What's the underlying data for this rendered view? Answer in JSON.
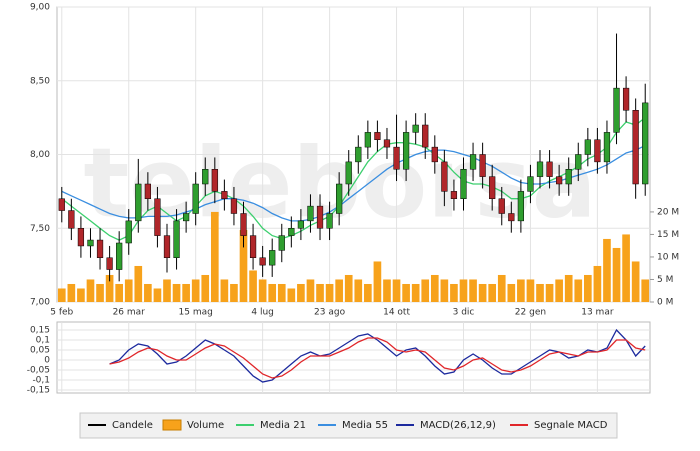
{
  "watermark": "teleborsa",
  "chart_data": [
    {
      "type": "candlestick",
      "categories": [
        "5 feb",
        null,
        null,
        null,
        null,
        null,
        null,
        "26 mar",
        null,
        null,
        null,
        null,
        null,
        null,
        "15 mag",
        null,
        null,
        null,
        null,
        null,
        null,
        "4 lug",
        null,
        null,
        null,
        null,
        null,
        null,
        "23 ago",
        null,
        null,
        null,
        null,
        null,
        null,
        "14 ott",
        null,
        null,
        null,
        null,
        null,
        null,
        "3 dic",
        null,
        null,
        null,
        null,
        null,
        null,
        "22 gen",
        null,
        null,
        null,
        null,
        null,
        null,
        "13 mar",
        null,
        null,
        null,
        null,
        null
      ],
      "ylim": [
        7,
        9
      ],
      "yticks": [
        {
          "value": 7,
          "label": "7,00"
        },
        {
          "value": 7.5,
          "label": "7,50"
        },
        {
          "value": 8,
          "label": "8,00"
        },
        {
          "value": 8.5,
          "label": "8,50"
        },
        {
          "value": 9,
          "label": "9,00"
        }
      ],
      "y2lim": [
        0,
        65.5
      ],
      "y2ticks": [
        {
          "value": 0,
          "label": "0 M"
        },
        {
          "value": 5,
          "label": "5 M"
        },
        {
          "value": 10,
          "label": "10 M"
        },
        {
          "value": 15,
          "label": "15 M"
        },
        {
          "value": 20,
          "label": "20 M"
        }
      ],
      "grid": true,
      "series": [
        {
          "name": "Candele",
          "type": "candlestick",
          "color": "#000000",
          "up_color": "#2f9e2f",
          "down_color": "#b0262a",
          "open": [
            7.7,
            7.62,
            7.5,
            7.38,
            7.42,
            7.3,
            7.22,
            7.4,
            7.55,
            7.8,
            7.7,
            7.45,
            7.3,
            7.55,
            7.6,
            7.8,
            7.9,
            7.75,
            7.7,
            7.6,
            7.45,
            7.3,
            7.25,
            7.35,
            7.45,
            7.5,
            7.55,
            7.65,
            7.5,
            7.6,
            7.8,
            7.95,
            8.05,
            8.15,
            8.1,
            8.05,
            7.9,
            8.15,
            8.2,
            8.05,
            7.95,
            7.75,
            7.7,
            7.9,
            8.0,
            7.85,
            7.7,
            7.6,
            7.55,
            7.75,
            7.85,
            7.95,
            7.85,
            7.8,
            7.9,
            8.0,
            8.1,
            7.95,
            8.15,
            8.45,
            8.3,
            7.8
          ],
          "high": [
            7.78,
            7.7,
            7.58,
            7.5,
            7.5,
            7.38,
            7.48,
            7.63,
            7.97,
            7.88,
            7.78,
            7.53,
            7.63,
            7.68,
            7.88,
            7.98,
            7.98,
            7.83,
            7.78,
            7.68,
            7.53,
            7.38,
            7.43,
            7.53,
            7.58,
            7.63,
            7.73,
            7.73,
            7.68,
            7.88,
            8.03,
            8.13,
            8.23,
            8.23,
            8.18,
            8.27,
            8.23,
            8.28,
            8.28,
            8.13,
            8.03,
            7.83,
            7.98,
            8.08,
            8.08,
            7.93,
            7.78,
            7.68,
            7.83,
            7.93,
            8.03,
            8.03,
            7.93,
            7.98,
            8.08,
            8.18,
            8.18,
            8.23,
            8.82,
            8.53,
            8.38,
            8.48
          ],
          "low": [
            7.54,
            7.42,
            7.3,
            7.3,
            7.22,
            7.14,
            7.14,
            7.32,
            7.47,
            7.62,
            7.37,
            7.2,
            7.22,
            7.47,
            7.52,
            7.72,
            7.67,
            7.62,
            7.52,
            7.37,
            7.22,
            7.17,
            7.17,
            7.27,
            7.37,
            7.42,
            7.47,
            7.42,
            7.42,
            7.52,
            7.72,
            7.87,
            7.97,
            8.02,
            7.97,
            7.82,
            7.82,
            8.07,
            7.97,
            7.87,
            7.65,
            7.62,
            7.62,
            7.82,
            7.77,
            7.62,
            7.52,
            7.47,
            7.47,
            7.67,
            7.77,
            7.77,
            7.72,
            7.72,
            7.82,
            7.92,
            7.87,
            7.87,
            8.07,
            8.22,
            7.7,
            7.72
          ],
          "close": [
            7.62,
            7.5,
            7.38,
            7.42,
            7.3,
            7.22,
            7.4,
            7.55,
            7.8,
            7.7,
            7.45,
            7.3,
            7.55,
            7.6,
            7.8,
            7.9,
            7.75,
            7.7,
            7.6,
            7.45,
            7.3,
            7.25,
            7.35,
            7.45,
            7.5,
            7.55,
            7.65,
            7.5,
            7.6,
            7.8,
            7.95,
            8.05,
            8.15,
            8.1,
            8.05,
            7.9,
            8.15,
            8.2,
            8.05,
            7.95,
            7.75,
            7.7,
            7.9,
            8.0,
            7.85,
            7.7,
            7.6,
            7.55,
            7.75,
            7.85,
            7.95,
            7.85,
            7.8,
            7.9,
            8.0,
            8.1,
            7.95,
            8.15,
            8.45,
            8.3,
            7.8,
            8.35
          ]
        },
        {
          "name": "Volume",
          "type": "bar",
          "axis": "y2",
          "color": "#f7a21b",
          "values": [
            3,
            4,
            3,
            5,
            4,
            6,
            4,
            5,
            8,
            4,
            3,
            5,
            4,
            4,
            5,
            6,
            20,
            5,
            4,
            16,
            7,
            5,
            4,
            4,
            3,
            4,
            5,
            4,
            4,
            5,
            6,
            5,
            4,
            9,
            5,
            5,
            4,
            4,
            5,
            6,
            5,
            4,
            5,
            5,
            4,
            4,
            6,
            4,
            5,
            5,
            4,
            4,
            5,
            6,
            5,
            6,
            8,
            14,
            12,
            15,
            9,
            5
          ]
        },
        {
          "name": "Media 21",
          "type": "line",
          "color": "#3ccf6e",
          "values": [
            7.7,
            7.65,
            7.6,
            7.55,
            7.5,
            7.45,
            7.42,
            7.45,
            7.55,
            7.62,
            7.65,
            7.6,
            7.55,
            7.58,
            7.65,
            7.72,
            7.75,
            7.73,
            7.7,
            7.65,
            7.58,
            7.5,
            7.45,
            7.43,
            7.45,
            7.48,
            7.52,
            7.55,
            7.58,
            7.65,
            7.75,
            7.85,
            7.95,
            8.02,
            8.07,
            8.08,
            8.08,
            8.07,
            8.05,
            8.0,
            7.95,
            7.88,
            7.82,
            7.8,
            7.8,
            7.78,
            7.75,
            7.7,
            7.7,
            7.72,
            7.78,
            7.82,
            7.85,
            7.88,
            7.92,
            7.97,
            8.0,
            8.05,
            8.15,
            8.22,
            8.2,
            8.25
          ]
        },
        {
          "name": "Media 55",
          "type": "line",
          "color": "#3a8ee0",
          "values": [
            7.75,
            7.72,
            7.69,
            7.66,
            7.63,
            7.6,
            7.58,
            7.57,
            7.57,
            7.58,
            7.58,
            7.58,
            7.59,
            7.61,
            7.63,
            7.66,
            7.68,
            7.7,
            7.7,
            7.69,
            7.67,
            7.64,
            7.6,
            7.57,
            7.55,
            7.55,
            7.56,
            7.58,
            7.61,
            7.65,
            7.7,
            7.75,
            7.8,
            7.85,
            7.9,
            7.94,
            7.97,
            8.0,
            8.02,
            8.03,
            8.03,
            8.02,
            8.0,
            7.98,
            7.95,
            7.92,
            7.88,
            7.84,
            7.81,
            7.8,
            7.8,
            7.81,
            7.82,
            7.84,
            7.86,
            7.88,
            7.9,
            7.93,
            7.97,
            8.01,
            8.03,
            8.06
          ]
        }
      ]
    },
    {
      "type": "line",
      "ylim": [
        -0.165,
        0.19
      ],
      "yticks": [
        {
          "value": 0.15,
          "label": "0,15"
        },
        {
          "value": 0.1,
          "label": "0,1"
        },
        {
          "value": 0.05,
          "label": "0,05"
        },
        0,
        {
          "value": -0.05,
          "label": "-0,05"
        },
        {
          "value": -0.1,
          "label": "-0,1"
        },
        {
          "value": -0.15,
          "label": "-0,15"
        }
      ],
      "grid": true,
      "series": [
        {
          "name": "MACD(26,12,9)",
          "color": "#1c2a9e",
          "values": [
            null,
            null,
            null,
            null,
            null,
            -0.02,
            0.0,
            0.05,
            0.08,
            0.07,
            0.03,
            -0.02,
            -0.01,
            0.02,
            0.06,
            0.1,
            0.08,
            0.05,
            0.02,
            -0.03,
            -0.08,
            -0.11,
            -0.1,
            -0.06,
            -0.02,
            0.02,
            0.04,
            0.02,
            0.03,
            0.06,
            0.09,
            0.12,
            0.13,
            0.1,
            0.06,
            0.02,
            0.05,
            0.06,
            0.02,
            -0.03,
            -0.07,
            -0.06,
            0.0,
            0.03,
            0.0,
            -0.04,
            -0.07,
            -0.07,
            -0.04,
            -0.01,
            0.02,
            0.05,
            0.04,
            0.01,
            0.02,
            0.05,
            0.04,
            0.06,
            0.15,
            0.1,
            0.02,
            0.07
          ]
        },
        {
          "name": "Segnale MACD",
          "color": "#e0262a",
          "values": [
            null,
            null,
            null,
            null,
            null,
            -0.02,
            -0.01,
            0.01,
            0.04,
            0.06,
            0.05,
            0.02,
            0.0,
            0.0,
            0.03,
            0.06,
            0.08,
            0.07,
            0.04,
            0.01,
            -0.03,
            -0.07,
            -0.09,
            -0.08,
            -0.05,
            -0.01,
            0.02,
            0.02,
            0.02,
            0.04,
            0.06,
            0.09,
            0.11,
            0.11,
            0.09,
            0.05,
            0.04,
            0.05,
            0.04,
            0.0,
            -0.04,
            -0.05,
            -0.03,
            0.0,
            0.01,
            -0.02,
            -0.05,
            -0.06,
            -0.05,
            -0.03,
            0.0,
            0.03,
            0.04,
            0.03,
            0.02,
            0.04,
            0.04,
            0.05,
            0.1,
            0.1,
            0.06,
            0.05
          ]
        }
      ]
    }
  ]
}
